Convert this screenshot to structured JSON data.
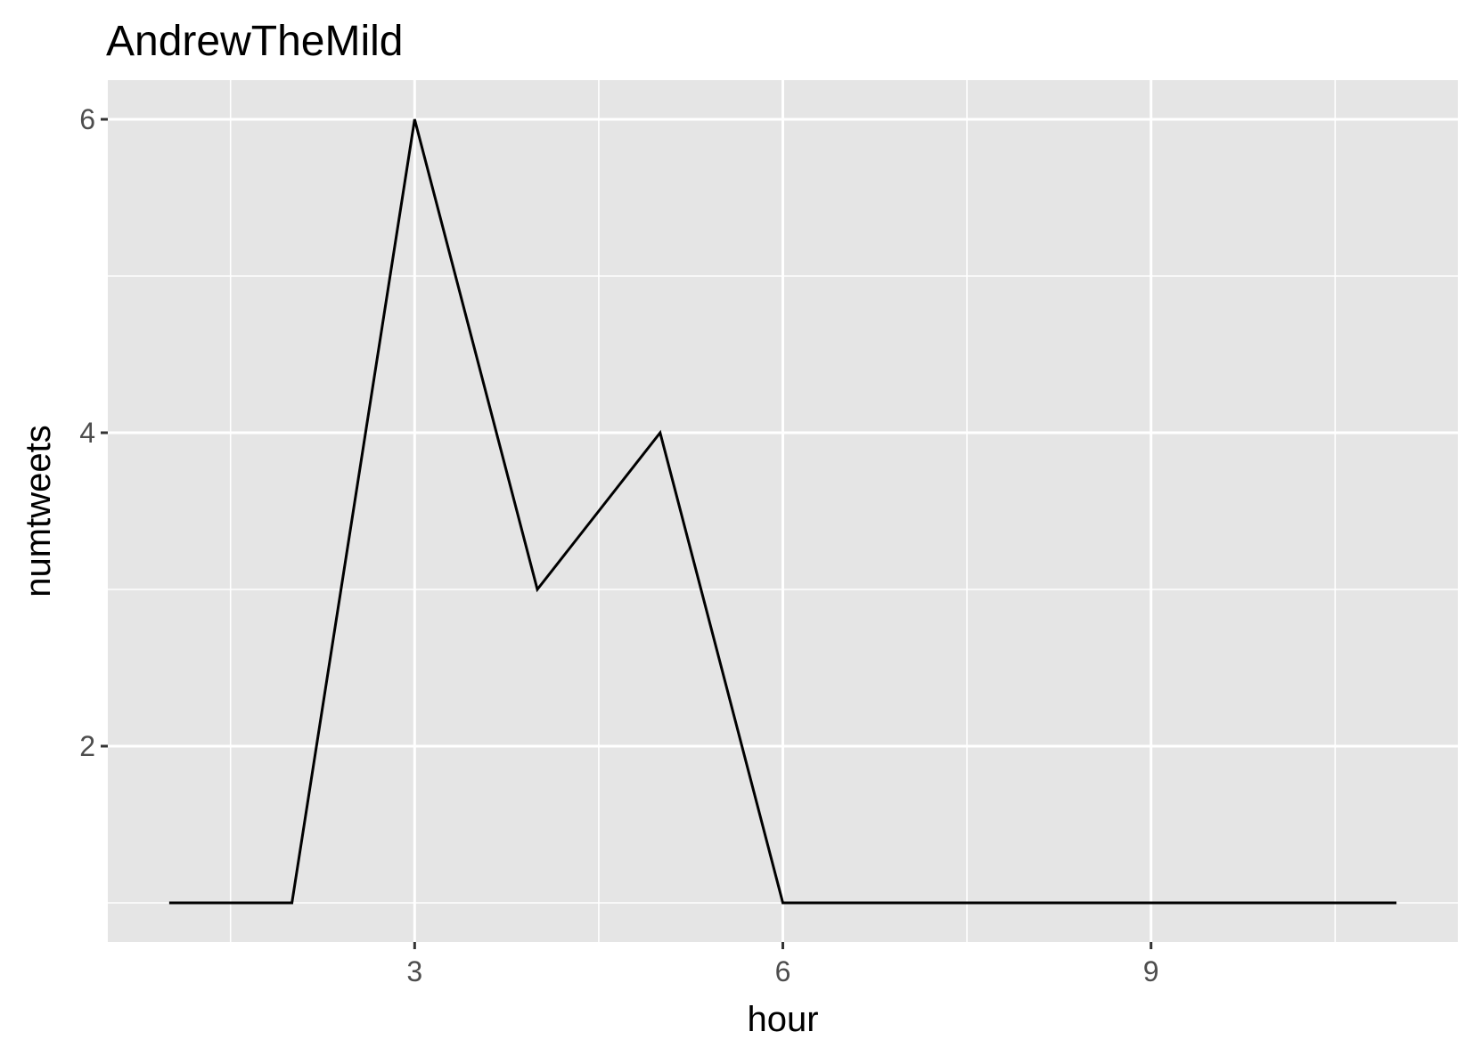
{
  "chart_data": {
    "type": "line",
    "title": "AndrewTheMild",
    "xlabel": "hour",
    "ylabel": "numtweets",
    "xlim": [
      0.5,
      11.5
    ],
    "ylim": [
      0.75,
      6.25
    ],
    "x_ticks": [
      3,
      6,
      9
    ],
    "x_tick_labels": [
      "3",
      "6",
      "9"
    ],
    "x_minor_gridlines": [
      1.5,
      4.5,
      7.5,
      10.5
    ],
    "y_ticks": [
      2,
      4,
      6
    ],
    "y_tick_labels": [
      "2",
      "4",
      "6"
    ],
    "y_minor_gridlines": [
      1,
      3,
      5
    ],
    "grid": true,
    "panel_background": "#e5e5e5",
    "grid_color": "#ffffff",
    "line_color": "#000000",
    "series": [
      {
        "x": [
          1,
          2,
          3,
          4,
          5,
          6,
          7,
          8,
          9,
          10,
          11
        ],
        "values": [
          1,
          1,
          6,
          3,
          4,
          1,
          1,
          1,
          1,
          1,
          1
        ]
      }
    ]
  }
}
